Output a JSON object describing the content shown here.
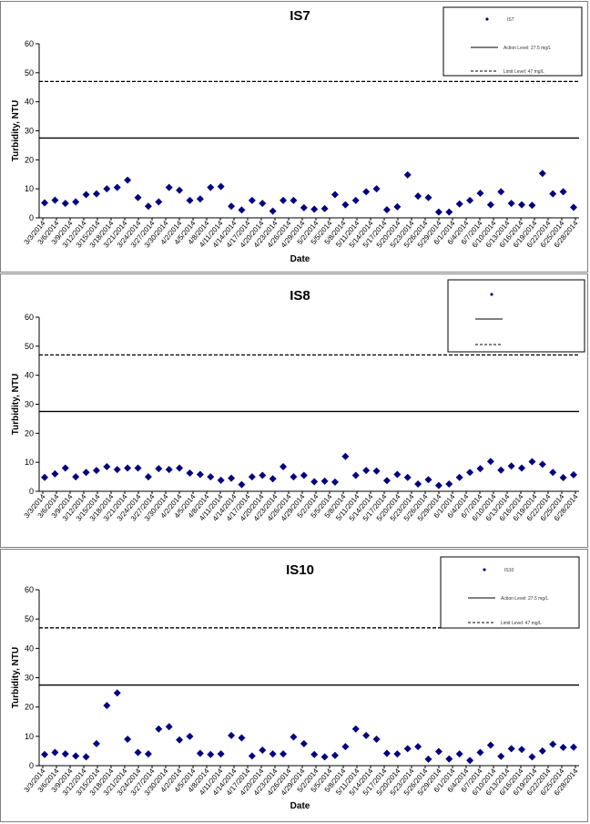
{
  "chart_data": [
    {
      "type": "scatter",
      "title": "IS7",
      "xlabel": "Date",
      "ylabel": "Turbidity, NTU",
      "ylim": [
        0,
        60
      ],
      "yticks": [
        0,
        10,
        20,
        30,
        40,
        50,
        60
      ],
      "x_tick_labels": [
        "3/3/2014",
        "3/6/2014",
        "3/9/2014",
        "3/12/2014",
        "3/15/2014",
        "3/18/2014",
        "3/21/2014",
        "3/24/2014",
        "3/27/2014",
        "3/30/2014",
        "4/2/2014",
        "4/5/2014",
        "4/8/2014",
        "4/11/2014",
        "4/14/2014",
        "4/17/2014",
        "4/20/2014",
        "4/23/2014",
        "4/26/2014",
        "4/29/2014",
        "5/2/2014",
        "5/5/2014",
        "5/8/2014",
        "5/11/2014",
        "5/14/2014",
        "5/17/2014",
        "5/20/2014",
        "5/23/2014",
        "5/26/2014",
        "5/29/2014",
        "6/1/2014",
        "6/4/2014",
        "6/7/2014",
        "6/10/2014",
        "6/13/2014",
        "6/16/2014",
        "6/19/2014",
        "6/22/2014",
        "6/25/2014",
        "6/28/2014"
      ],
      "lines": [
        {
          "name": "Action Level: 27.5 mg/L",
          "y": 27.5,
          "style": "solid"
        },
        {
          "name": "Limit Level: 47 mg/L",
          "y": 47,
          "style": "dashed"
        }
      ],
      "series": [
        {
          "name": "IS7",
          "color": "#000080",
          "marker": "diamond",
          "values": [
            5.2,
            6.1,
            5.0,
            5.5,
            8.0,
            8.3,
            10.0,
            10.5,
            13.0,
            7.0,
            4.0,
            5.5,
            10.5,
            9.5,
            6.0,
            6.5,
            10.5,
            10.8,
            4.0,
            2.7,
            6.0,
            5.0,
            2.3,
            6.0,
            6.0,
            3.5,
            3.0,
            3.2,
            8.0,
            4.5,
            6.0,
            9.0,
            10.0,
            2.8,
            3.8,
            14.8,
            7.5,
            7.0,
            2.0,
            2.0,
            4.8,
            6.0,
            8.5,
            4.5,
            9.0,
            5.0,
            4.5,
            4.3,
            15.3,
            8.3,
            9.0,
            3.6
          ]
        }
      ],
      "legend_position": "top-right"
    },
    {
      "type": "scatter",
      "title": "IS8",
      "xlabel": "",
      "ylabel": "Turbidity, NTU",
      "ylim": [
        0,
        60
      ],
      "yticks": [
        0,
        10,
        20,
        30,
        40,
        50,
        60
      ],
      "x_tick_labels": [
        "3/3/2014",
        "3/6/2014",
        "3/9/2014",
        "3/12/2014",
        "3/15/2014",
        "3/18/2014",
        "3/21/2014",
        "3/24/2014",
        "3/27/2014",
        "3/30/2014",
        "4/2/2014",
        "4/5/2014",
        "4/8/2014",
        "4/11/2014",
        "4/14/2014",
        "4/17/2014",
        "4/20/2014",
        "4/23/2014",
        "4/26/2014",
        "4/29/2014",
        "5/2/2014",
        "5/5/2014",
        "5/8/2014",
        "5/11/2014",
        "5/14/2014",
        "5/17/2014",
        "5/20/2014",
        "5/23/2014",
        "5/26/2014",
        "5/29/2014",
        "6/1/2014",
        "6/4/2014",
        "6/7/2014",
        "6/10/2014",
        "6/13/2014",
        "6/16/2014",
        "6/19/2014",
        "6/22/2014",
        "6/25/2014",
        "6/28/2014"
      ],
      "lines": [
        {
          "name": "",
          "y": 27.5,
          "style": "solid"
        },
        {
          "name": "",
          "y": 47,
          "style": "dashed"
        }
      ],
      "series": [
        {
          "name": "",
          "color": "#000080",
          "marker": "diamond",
          "values": [
            4.8,
            6.0,
            8.0,
            5.0,
            6.5,
            7.2,
            8.5,
            7.5,
            8.0,
            8.0,
            5.0,
            7.8,
            7.5,
            8.0,
            6.3,
            5.8,
            5.0,
            3.8,
            4.5,
            2.3,
            5.0,
            5.5,
            4.3,
            8.5,
            5.0,
            5.5,
            3.3,
            3.5,
            3.2,
            12.0,
            5.5,
            7.2,
            7.0,
            3.7,
            5.8,
            4.8,
            2.5,
            4.0,
            2.0,
            2.5,
            4.8,
            6.5,
            7.8,
            10.3,
            7.3,
            8.7,
            8.0,
            10.2,
            9.3,
            6.5,
            4.7,
            5.7
          ]
        }
      ],
      "legend_position": "top-right"
    },
    {
      "type": "scatter",
      "title": "IS10",
      "xlabel": "Date",
      "ylabel": "Turbidity, NTU",
      "ylim": [
        0,
        60
      ],
      "yticks": [
        0,
        10,
        20,
        30,
        40,
        50,
        60
      ],
      "x_tick_labels": [
        "3/3/2014",
        "3/6/2014",
        "3/9/2014",
        "3/12/2014",
        "3/15/2014",
        "3/18/2014",
        "3/21/2014",
        "3/24/2014",
        "3/27/2014",
        "3/30/2014",
        "4/2/2014",
        "4/5/2014",
        "4/8/2014",
        "4/11/2014",
        "4/14/2014",
        "4/17/2014",
        "4/20/2014",
        "4/23/2014",
        "4/26/2014",
        "4/29/2014",
        "5/2/2014",
        "5/5/2014",
        "5/8/2014",
        "5/11/2014",
        "5/14/2014",
        "5/17/2014",
        "5/20/2014",
        "5/23/2014",
        "5/26/2014",
        "5/29/2014",
        "6/1/2014",
        "6/4/2014",
        "6/7/2014",
        "6/10/2014",
        "6/13/2014",
        "6/16/2014",
        "6/19/2014",
        "6/22/2014",
        "6/25/2014",
        "6/28/2014"
      ],
      "lines": [
        {
          "name": "Action Level: 27.5 mg/L",
          "y": 27.5,
          "style": "solid"
        },
        {
          "name": "Limit Level: 47 mg/L",
          "y": 47,
          "style": "dashed"
        }
      ],
      "series": [
        {
          "name": "IS10",
          "color": "#000080",
          "marker": "diamond",
          "values": [
            3.8,
            4.5,
            4.0,
            3.3,
            3.0,
            7.5,
            20.5,
            24.8,
            9.0,
            4.5,
            4.0,
            12.5,
            13.3,
            8.8,
            10.0,
            4.2,
            3.8,
            4.0,
            10.3,
            9.5,
            3.3,
            5.3,
            4.0,
            4.0,
            9.8,
            7.5,
            3.8,
            3.0,
            3.5,
            6.5,
            12.5,
            10.3,
            9.0,
            4.2,
            4.0,
            5.8,
            6.5,
            2.2,
            4.8,
            2.3,
            4.0,
            1.8,
            4.5,
            7.0,
            3.2,
            5.8,
            5.5,
            3.0,
            5.0,
            7.3,
            6.2,
            6.3
          ]
        }
      ],
      "legend_position": "top-right"
    }
  ]
}
